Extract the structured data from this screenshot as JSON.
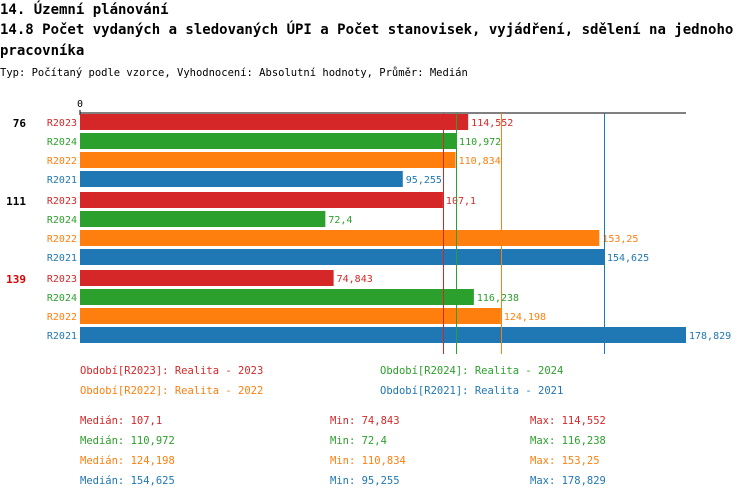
{
  "header": {
    "title": "14. Územní plánování",
    "subtitle": "14.8 Počet vydaných a sledovaných ÚPI a Počet stanovisek, vyjádření, sdělení na jednoho pracovníka",
    "meta": "Typ: Počítaný podle vzorce, Vyhodnocení: Absolutní hodnoty, Průměr: Medián"
  },
  "colors": {
    "R2023": "#d62728",
    "R2024": "#2ca02c",
    "R2022": "#ff7f0e",
    "R2021": "#1f77b4",
    "highlight": "#dd0000"
  },
  "chart_data": {
    "type": "bar",
    "orientation": "horizontal",
    "axis_zero_label": "0",
    "xlim": [
      0,
      178.829
    ],
    "groups": [
      {
        "label": "76",
        "highlight": false,
        "bars": [
          {
            "series": "R2023",
            "value": 114.552,
            "label": "114,552"
          },
          {
            "series": "R2024",
            "value": 110.972,
            "label": "110,972"
          },
          {
            "series": "R2022",
            "value": 110.834,
            "label": "110,834"
          },
          {
            "series": "R2021",
            "value": 95.255,
            "label": "95,255"
          }
        ]
      },
      {
        "label": "111",
        "highlight": false,
        "bars": [
          {
            "series": "R2023",
            "value": 107.1,
            "label": "107,1"
          },
          {
            "series": "R2024",
            "value": 72.4,
            "label": "72,4"
          },
          {
            "series": "R2022",
            "value": 153.25,
            "label": "153,25"
          },
          {
            "series": "R2021",
            "value": 154.625,
            "label": "154,625"
          }
        ]
      },
      {
        "label": "139",
        "highlight": true,
        "bars": [
          {
            "series": "R2023",
            "value": 74.843,
            "label": "74,843"
          },
          {
            "series": "R2024",
            "value": 116.238,
            "label": "116,238"
          },
          {
            "series": "R2022",
            "value": 124.198,
            "label": "124,198"
          },
          {
            "series": "R2021",
            "value": 178.829,
            "label": "178,829"
          }
        ]
      }
    ],
    "median_lines": [
      {
        "series": "R2023",
        "value": 107.1
      },
      {
        "series": "R2024",
        "value": 110.972
      },
      {
        "series": "R2022",
        "value": 124.198
      },
      {
        "series": "R2021",
        "value": 154.625
      }
    ]
  },
  "legend": [
    {
      "series": "R2023",
      "text": "Období[R2023]: Realita - 2023"
    },
    {
      "series": "R2024",
      "text": "Období[R2024]: Realita - 2024"
    },
    {
      "series": "R2022",
      "text": "Období[R2022]: Realita - 2022"
    },
    {
      "series": "R2021",
      "text": "Období[R2021]: Realita - 2021"
    }
  ],
  "stats": [
    {
      "series": "R2023",
      "median": "Medián: 107,1",
      "min": "Min: 74,843",
      "max": "Max: 114,552"
    },
    {
      "series": "R2024",
      "median": "Medián: 110,972",
      "min": "Min: 72,4",
      "max": "Max: 116,238"
    },
    {
      "series": "R2022",
      "median": "Medián: 124,198",
      "min": "Min: 110,834",
      "max": "Max: 153,25"
    },
    {
      "series": "R2021",
      "median": "Medián: 154,625",
      "min": "Min: 95,255",
      "max": "Max: 178,829"
    }
  ]
}
